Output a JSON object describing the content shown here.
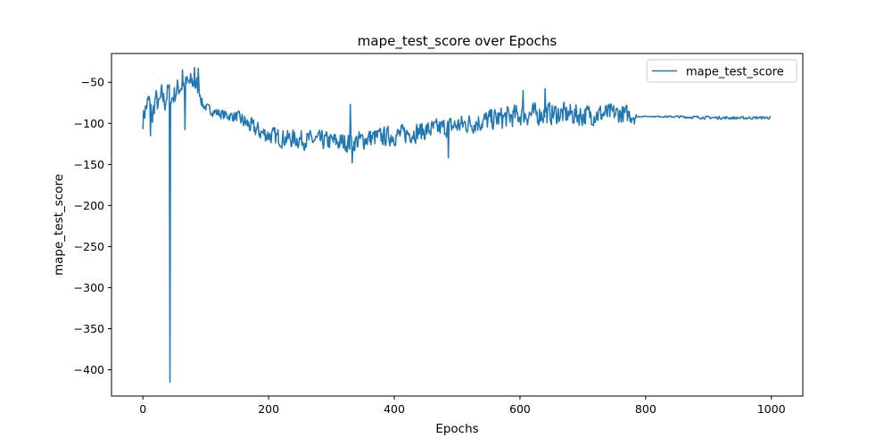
{
  "chart_data": {
    "type": "line",
    "title": "mape_test_score over Epochs",
    "xlabel": "Epochs",
    "ylabel": "mape_test_score",
    "xlim": [
      -50,
      1050
    ],
    "ylim": [
      -432,
      -15
    ],
    "xticks": [
      0,
      200,
      400,
      600,
      800,
      1000
    ],
    "yticks": [
      -50,
      -100,
      -150,
      -200,
      -250,
      -300,
      -350,
      -400
    ],
    "xtick_labels": [
      "0",
      "200",
      "400",
      "600",
      "800",
      "1000"
    ],
    "ytick_labels": [
      "−50",
      "−100",
      "−150",
      "−200",
      "−250",
      "−300",
      "−350",
      "−400"
    ],
    "grid": false,
    "legend_position": "top-right",
    "series": [
      {
        "name": "mape_test_score",
        "color": "#1f77b4",
        "x_start": 0,
        "x_end": 999,
        "anchors": [
          [
            0,
            -95
          ],
          [
            5,
            -80
          ],
          [
            10,
            -72
          ],
          [
            15,
            -95
          ],
          [
            20,
            -68
          ],
          [
            25,
            -80
          ],
          [
            30,
            -65
          ],
          [
            35,
            -75
          ],
          [
            40,
            -60
          ],
          [
            43,
            -415
          ],
          [
            46,
            -70
          ],
          [
            50,
            -65
          ],
          [
            55,
            -58
          ],
          [
            60,
            -55
          ],
          [
            70,
            -52
          ],
          [
            80,
            -50
          ],
          [
            90,
            -58
          ],
          [
            95,
            -78
          ],
          [
            110,
            -85
          ],
          [
            130,
            -90
          ],
          [
            150,
            -92
          ],
          [
            170,
            -103
          ],
          [
            190,
            -112
          ],
          [
            220,
            -118
          ],
          [
            260,
            -120
          ],
          [
            300,
            -122
          ],
          [
            330,
            -124
          ],
          [
            360,
            -118
          ],
          [
            400,
            -115
          ],
          [
            440,
            -110
          ],
          [
            480,
            -105
          ],
          [
            520,
            -100
          ],
          [
            560,
            -95
          ],
          [
            600,
            -90
          ],
          [
            650,
            -88
          ],
          [
            700,
            -90
          ],
          [
            750,
            -88
          ],
          [
            783,
            -90
          ],
          [
            786,
            -92
          ],
          [
            800,
            -91.5
          ],
          [
            850,
            -92
          ],
          [
            900,
            -93
          ],
          [
            950,
            -93.5
          ],
          [
            999,
            -93
          ]
        ],
        "noise": [
          [
            0,
            15
          ],
          [
            90,
            15
          ],
          [
            95,
            6
          ],
          [
            150,
            8
          ],
          [
            160,
            12
          ],
          [
            300,
            14
          ],
          [
            500,
            14
          ],
          [
            560,
            16
          ],
          [
            700,
            16
          ],
          [
            783,
            13
          ],
          [
            786,
            0.3
          ],
          [
            830,
            1
          ],
          [
            870,
            2
          ],
          [
            999,
            2
          ]
        ],
        "spikes": [
          [
            43,
            -415
          ],
          [
            88,
            -33
          ],
          [
            82,
            -32
          ],
          [
            63,
            -35
          ],
          [
            12,
            -115
          ],
          [
            67,
            -108
          ],
          [
            330,
            -77
          ],
          [
            333,
            -148
          ],
          [
            486,
            -142
          ],
          [
            640,
            -58
          ],
          [
            605,
            -60
          ]
        ]
      }
    ]
  }
}
